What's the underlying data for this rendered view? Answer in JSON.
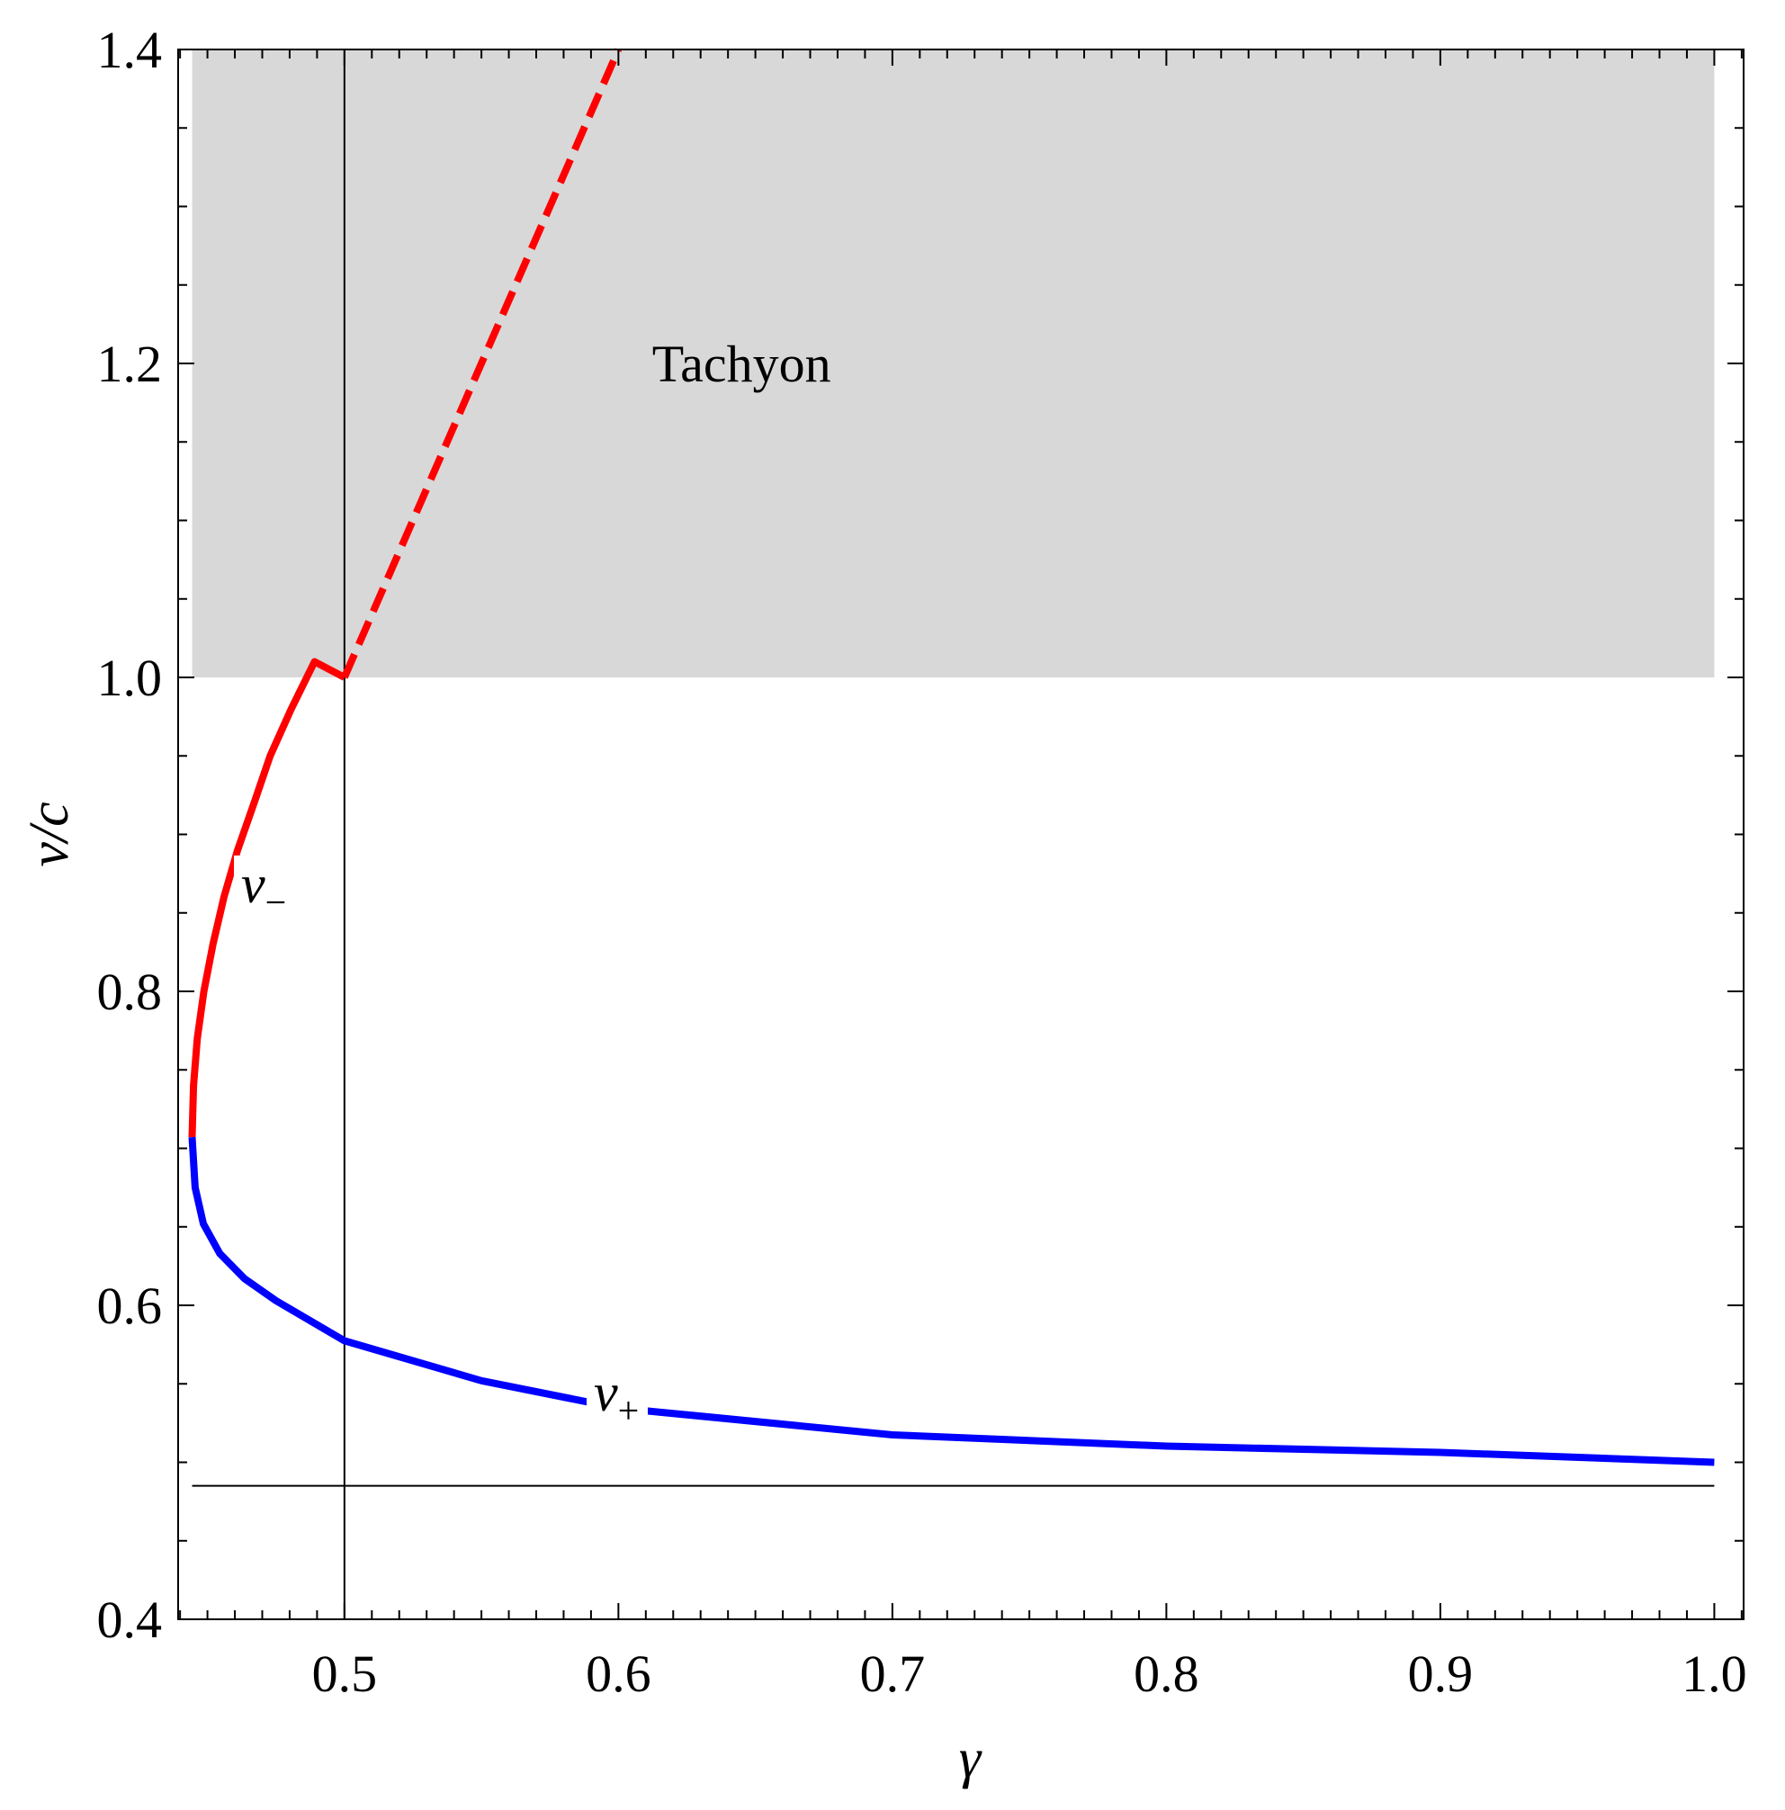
{
  "chart_data": {
    "type": "line",
    "xlabel": "γ",
    "ylabel": "v/c",
    "xlim": [
      0.4393,
      1.0107
    ],
    "ylim": [
      0.4,
      1.4
    ],
    "xticks": [
      "0.5",
      "0.6",
      "0.7",
      "0.8",
      "0.9",
      "1.0"
    ],
    "yticks": [
      "0.4",
      "0.6",
      "0.8",
      "1.0",
      "1.2",
      "1.4"
    ],
    "shaded_region": {
      "label": "Tachyon",
      "x": [
        0.4444,
        1.0
      ],
      "y": [
        1.0,
        1.4
      ],
      "color": "#d8d8d8"
    },
    "reference_lines": {
      "vertical_x": 0.5,
      "horizontal_y": 0.485
    },
    "series": [
      {
        "name": "v_-",
        "label_main": "v",
        "label_sub": "−",
        "color": "#ff0000",
        "style": "solid",
        "x": [
          0.4444,
          0.4449,
          0.4463,
          0.4487,
          0.452,
          0.456,
          0.461,
          0.467,
          0.4729,
          0.4806,
          0.4891,
          0.5
        ],
        "y": [
          0.7071,
          0.74,
          0.77,
          0.8,
          0.83,
          0.86,
          0.89,
          0.92,
          0.95,
          0.98,
          1.01,
          1.0
        ]
      },
      {
        "name": "v_- (tachyonic)",
        "color": "#ff0000",
        "style": "dashed",
        "x": [
          0.5,
          0.52,
          0.54,
          0.56,
          0.58,
          0.6
        ],
        "y": [
          1.0,
          1.08,
          1.16,
          1.24,
          1.32,
          1.4
        ]
      },
      {
        "name": "v_+",
        "label_main": "v",
        "label_sub": "+",
        "color": "#0000ff",
        "style": "solid",
        "x": [
          0.4444,
          0.4455,
          0.4485,
          0.4545,
          0.4635,
          0.475,
          0.5,
          0.55,
          0.6,
          0.7,
          0.8,
          0.9,
          1.0
        ],
        "y": [
          0.7071,
          0.675,
          0.652,
          0.633,
          0.617,
          0.603,
          0.5774,
          0.552,
          0.5345,
          0.5175,
          0.5103,
          0.5063,
          0.5
        ]
      }
    ],
    "annotations": [
      {
        "text": "Tachyon",
        "x": 0.64,
        "y": 1.2
      }
    ]
  }
}
